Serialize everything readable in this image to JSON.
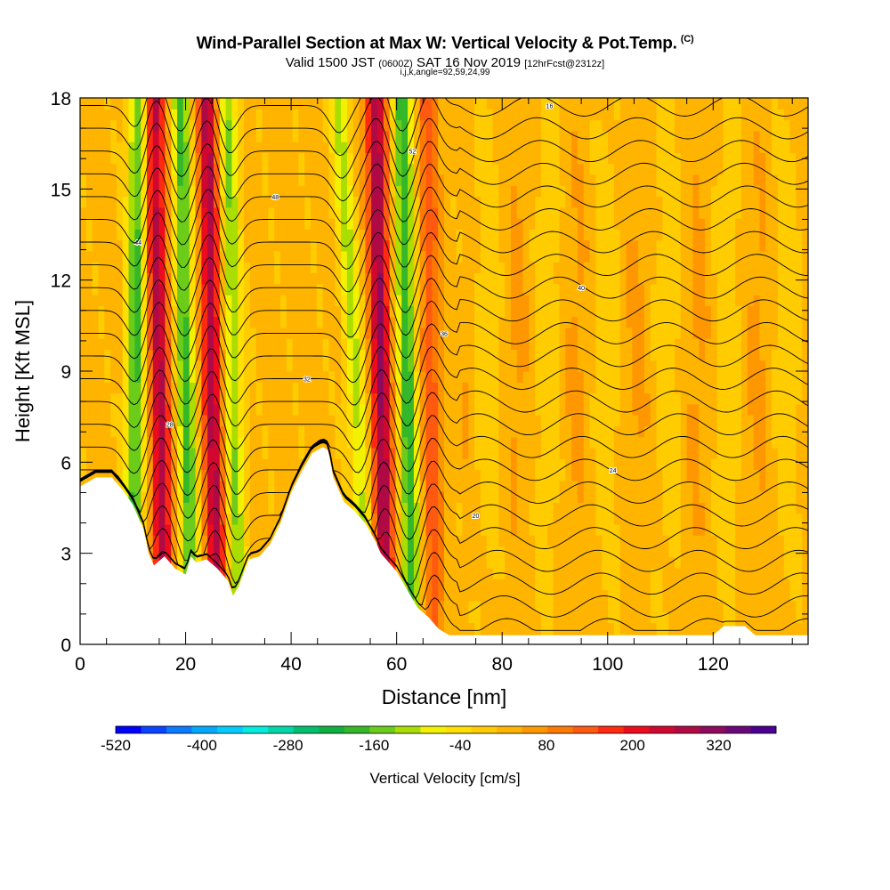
{
  "title": {
    "main": "Wind-Parallel Section at Max W: Vertical Velocity & Pot.Temp.",
    "tag": "(C)",
    "valid_prefix": "Valid 1500 JST",
    "valid_utc": "(0600Z)",
    "valid_date": "SAT 16 Nov 2019",
    "forecast": "[12hrFcst@2312z]",
    "params": "i,j,k,angle=92,59,24,99"
  },
  "chart_data": {
    "type": "heatmap",
    "xlabel": "Distance [nm]",
    "ylabel": "Height [Kft MSL]",
    "xlim": [
      0,
      138
    ],
    "ylim": [
      0,
      18
    ],
    "x_ticks": [
      0,
      20,
      40,
      60,
      80,
      100,
      120
    ],
    "y_ticks": [
      0,
      3,
      6,
      9,
      12,
      15,
      18
    ],
    "colorbar": {
      "label": "Vertical Velocity [cm/s]",
      "range": [
        -520,
        400
      ],
      "tick_values": [
        -520,
        -400,
        -280,
        -160,
        -40,
        80,
        200,
        320
      ],
      "colors": [
        "#0000ff",
        "#0a44ff",
        "#0a7aff",
        "#00aaff",
        "#00ccff",
        "#00eedd",
        "#00d8a8",
        "#00c070",
        "#10b040",
        "#34b82a",
        "#6ccc1a",
        "#aadd00",
        "#f2f200",
        "#ffe000",
        "#ffcc00",
        "#ffb400",
        "#ff9800",
        "#ff7a00",
        "#ff5a10",
        "#ff2a10",
        "#ec0c1e",
        "#d00830",
        "#b00a45",
        "#8e0a5c",
        "#6a087a",
        "#4b0090"
      ]
    },
    "updraft_bands": [
      {
        "x_bottom": 16,
        "x_top": 14,
        "peak_cm_s": 250
      },
      {
        "x_bottom": 26,
        "x_top": 24,
        "peak_cm_s": 250
      },
      {
        "x_bottom": 58,
        "x_top": 56,
        "peak_cm_s": 280
      },
      {
        "x_bottom": 67,
        "x_top": 66,
        "peak_cm_s": 120
      }
    ],
    "downdraft_bands": [
      {
        "x_bottom": 10,
        "x_top": 11,
        "peak_cm_s": -200
      },
      {
        "x_bottom": 21,
        "x_top": 19,
        "peak_cm_s": -200
      },
      {
        "x_bottom": 30,
        "x_top": 28,
        "peak_cm_s": -150
      },
      {
        "x_bottom": 55,
        "x_top": 49,
        "peak_cm_s": -130
      },
      {
        "x_bottom": 63,
        "x_top": 61,
        "peak_cm_s": -220
      }
    ],
    "terrain_profile": {
      "x": [
        0,
        3,
        6,
        8,
        10,
        12,
        13,
        14,
        16,
        18,
        20,
        21,
        22,
        24,
        26,
        28,
        29,
        30,
        32,
        34,
        36,
        38,
        40,
        42,
        44,
        46,
        47,
        48,
        50,
        52,
        54,
        56,
        57,
        58,
        60,
        62,
        64,
        66,
        68,
        70,
        72,
        80,
        90,
        100,
        110,
        120,
        122,
        126,
        128,
        130,
        138
      ],
      "height_kft": [
        5.2,
        5.5,
        5.5,
        5.1,
        4.6,
        3.8,
        3.0,
        2.6,
        2.9,
        2.5,
        2.3,
        2.9,
        2.7,
        2.8,
        2.5,
        2.1,
        1.6,
        1.9,
        2.8,
        2.9,
        3.3,
        4.0,
        5.0,
        5.7,
        6.3,
        6.5,
        6.4,
        5.5,
        4.7,
        4.4,
        4.0,
        3.4,
        3.0,
        2.8,
        2.4,
        1.8,
        1.2,
        0.9,
        0.5,
        0.3,
        0.3,
        0.3,
        0.3,
        0.3,
        0.3,
        0.3,
        0.6,
        0.6,
        0.3,
        0.3,
        0.3
      ]
    },
    "isentropes": {
      "label_values": [
        16,
        12,
        20,
        24,
        28,
        32,
        36,
        40,
        44,
        48,
        52
      ],
      "count": 24
    }
  }
}
